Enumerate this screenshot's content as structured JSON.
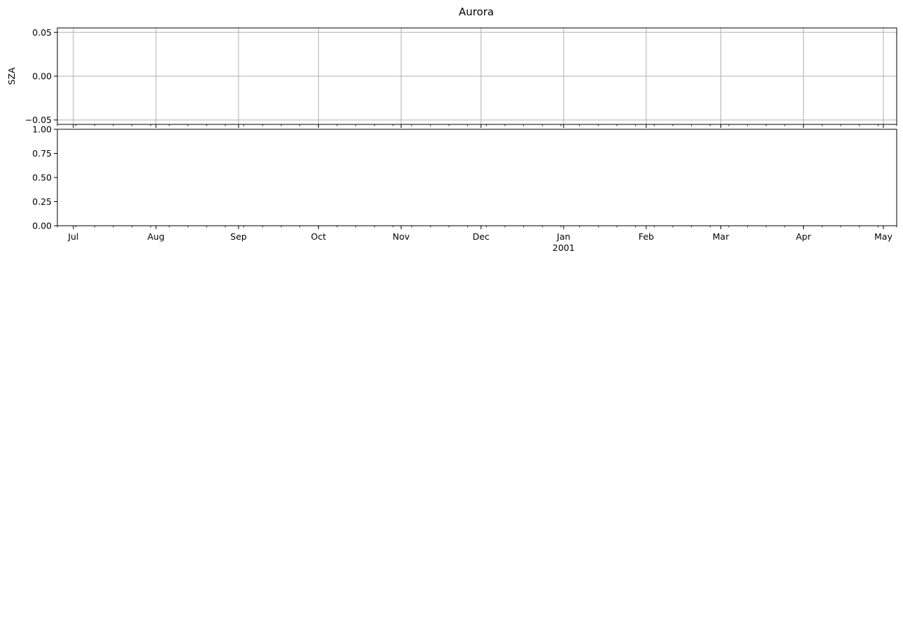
{
  "chart_data": [
    {
      "type": "line",
      "title": "Aurora",
      "ylabel": "SZA",
      "xlabel": "",
      "ylim": [
        -0.055,
        0.055
      ],
      "yticks": [
        -0.05,
        0.0,
        0.05
      ],
      "ytick_labels": [
        "−0.05",
        "0.00",
        "0.05"
      ],
      "grid": true,
      "series": [],
      "x_tick_labels_shown": false
    },
    {
      "type": "line",
      "title": "",
      "ylabel": "",
      "xlabel": "",
      "ylim": [
        0,
        1
      ],
      "yticks": [
        0,
        0.25,
        0.5,
        0.75,
        1.0
      ],
      "ytick_labels": [
        "0.00",
        "0.25",
        "0.50",
        "0.75",
        "1.00"
      ],
      "grid": false,
      "series": [],
      "x_tick_labels_shown": true
    }
  ],
  "shared_xaxis": {
    "xlim": [
      "2000-06-25",
      "2001-05-06"
    ],
    "major_ticks": [
      {
        "date": "2000-07-01",
        "label": "Jul"
      },
      {
        "date": "2000-08-01",
        "label": "Aug"
      },
      {
        "date": "2000-09-01",
        "label": "Sep"
      },
      {
        "date": "2000-10-01",
        "label": "Oct"
      },
      {
        "date": "2000-11-01",
        "label": "Nov"
      },
      {
        "date": "2000-12-01",
        "label": "Dec"
      },
      {
        "date": "2001-01-01",
        "label": "Jan"
      },
      {
        "date": "2001-02-01",
        "label": "Feb"
      },
      {
        "date": "2001-03-01",
        "label": "Mar"
      },
      {
        "date": "2001-04-01",
        "label": "Apr"
      },
      {
        "date": "2001-05-01",
        "label": "May"
      }
    ],
    "offset_label": "2001",
    "minor_tick_weekday": "Sunday"
  }
}
